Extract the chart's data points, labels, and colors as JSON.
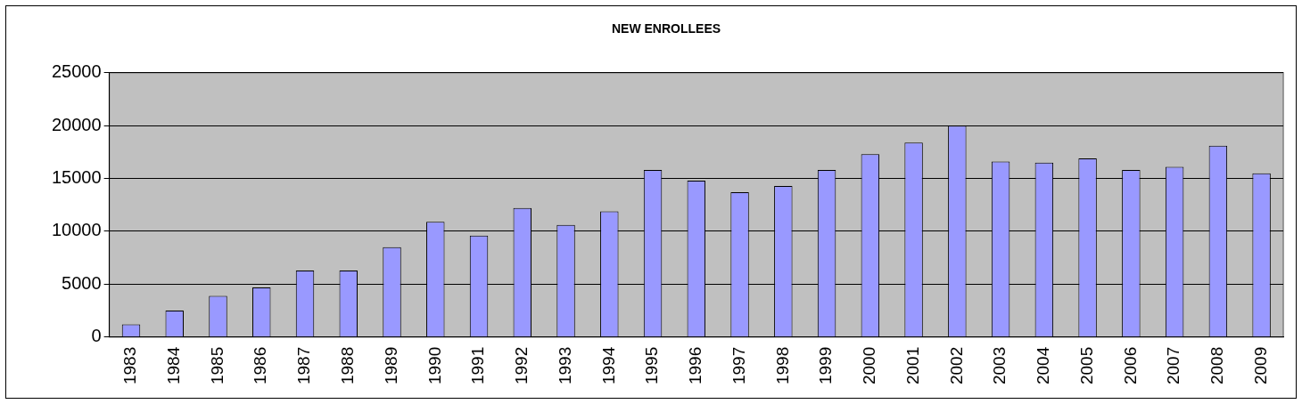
{
  "chart_data": {
    "type": "bar",
    "title": "NEW ENROLLEES",
    "categories": [
      "1983",
      "1984",
      "1985",
      "1986",
      "1987",
      "1988",
      "1989",
      "1990",
      "1991",
      "1992",
      "1993",
      "1994",
      "1995",
      "1996",
      "1997",
      "1998",
      "1999",
      "2000",
      "2001",
      "2002",
      "2003",
      "2004",
      "2005",
      "2006",
      "2007",
      "2008",
      "2009"
    ],
    "values": [
      1200,
      2500,
      3900,
      4700,
      6300,
      6300,
      8500,
      10900,
      9600,
      12200,
      10600,
      11900,
      15800,
      14800,
      13700,
      14300,
      15800,
      17300,
      18400,
      20000,
      16600,
      16500,
      16900,
      15800,
      16100,
      18100,
      15500
    ],
    "color": "#9999ff",
    "ylim": [
      0,
      25000
    ],
    "yticks": [
      0,
      5000,
      10000,
      15000,
      20000,
      25000
    ],
    "grid": "y",
    "legend": false
  }
}
